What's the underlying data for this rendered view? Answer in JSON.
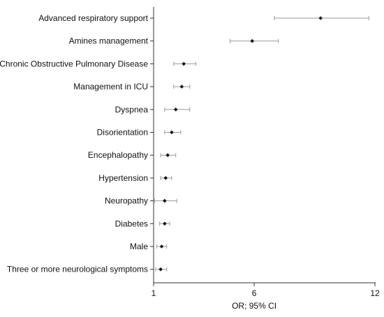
{
  "chart_data": {
    "type": "forest",
    "title": "",
    "xlabel": "OR; 95% CI",
    "ylabel": "",
    "xlim": [
      1,
      12
    ],
    "xticks": [
      1,
      6,
      12
    ],
    "grid": false,
    "legend": "none",
    "colors": {
      "axis": "#333333",
      "whisker": "#9a9a9a",
      "point": "#111111"
    },
    "rows": [
      {
        "label": "Advanced respiratory support",
        "or": 9.3,
        "lower": 7.0,
        "upper": 11.7
      },
      {
        "label": "Amines management",
        "or": 5.9,
        "lower": 4.8,
        "upper": 7.2
      },
      {
        "label": "Chronic Obstructive Pulmonary Disease",
        "or": 2.5,
        "lower": 2.0,
        "upper": 3.1
      },
      {
        "label": "Management in ICU",
        "or": 2.4,
        "lower": 2.0,
        "upper": 2.8
      },
      {
        "label": "Dyspnea",
        "or": 2.1,
        "lower": 1.55,
        "upper": 2.8
      },
      {
        "label": "Disorientation",
        "or": 1.9,
        "lower": 1.55,
        "upper": 2.35
      },
      {
        "label": "Encephalopathy",
        "or": 1.7,
        "lower": 1.35,
        "upper": 2.1
      },
      {
        "label": "Hypertension",
        "or": 1.6,
        "lower": 1.35,
        "upper": 1.9
      },
      {
        "label": "Neuropathy",
        "or": 1.55,
        "lower": 1.05,
        "upper": 2.15
      },
      {
        "label": "Diabetes",
        "or": 1.55,
        "lower": 1.3,
        "upper": 1.8
      },
      {
        "label": "Male",
        "or": 1.4,
        "lower": 1.15,
        "upper": 1.65
      },
      {
        "label": "Three or more neurological symptoms",
        "or": 1.35,
        "lower": 1.1,
        "upper": 1.65
      }
    ]
  }
}
